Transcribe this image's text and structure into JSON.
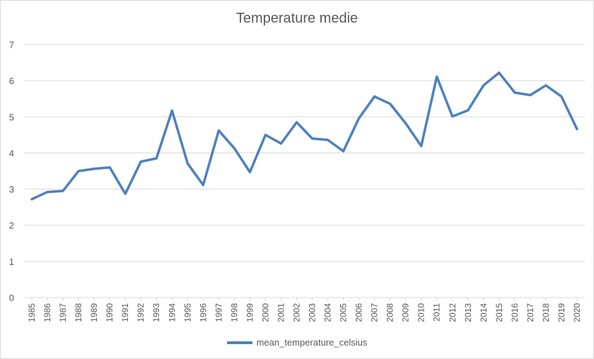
{
  "chart_data": {
    "type": "line",
    "title": "Temperature medie",
    "xlabel": "",
    "ylabel": "",
    "ylim": [
      0,
      7
    ],
    "yticks": [
      "0",
      "1",
      "2",
      "3",
      "4",
      "5",
      "6",
      "7"
    ],
    "grid": true,
    "legend_position": "bottom",
    "categories": [
      "1985",
      "1986",
      "1987",
      "1988",
      "1989",
      "1990",
      "1991",
      "1992",
      "1993",
      "1994",
      "1995",
      "1996",
      "1997",
      "1998",
      "1999",
      "2000",
      "2001",
      "2002",
      "2003",
      "2004",
      "2005",
      "2006",
      "2007",
      "2008",
      "2009",
      "2010",
      "2011",
      "2012",
      "2013",
      "2014",
      "2015",
      "2016",
      "2017",
      "2018",
      "2019",
      "2020"
    ],
    "series": [
      {
        "name": "mean_temperature_celsius",
        "color": "#4e81bd",
        "values": [
          2.72,
          2.92,
          2.95,
          3.5,
          3.56,
          3.6,
          2.87,
          3.76,
          3.85,
          5.17,
          3.71,
          3.11,
          4.62,
          4.13,
          3.47,
          4.5,
          4.26,
          4.85,
          4.4,
          4.36,
          4.05,
          4.96,
          5.56,
          5.36,
          4.82,
          4.19,
          6.11,
          5.01,
          5.18,
          5.87,
          6.22,
          5.67,
          5.6,
          5.87,
          5.56,
          4.66
        ]
      }
    ]
  }
}
